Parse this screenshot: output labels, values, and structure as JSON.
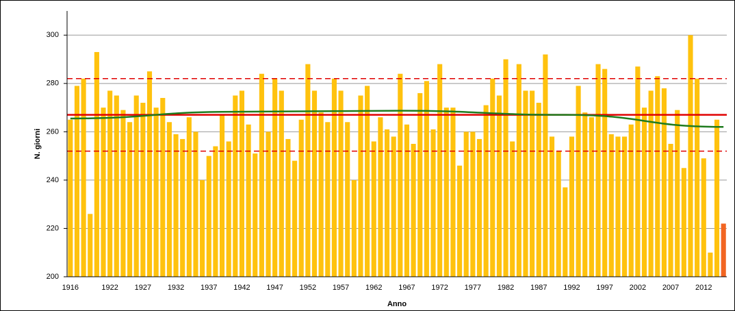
{
  "chart_data": {
    "type": "bar",
    "x_label": "Anno",
    "y_label": "N. giorni",
    "categories": [
      "1916",
      null,
      null,
      null,
      null,
      null,
      "1922",
      null,
      null,
      null,
      null,
      "1927",
      null,
      null,
      null,
      null,
      "1932",
      null,
      null,
      null,
      null,
      "1937",
      null,
      null,
      null,
      null,
      "1942",
      null,
      null,
      null,
      null,
      "1947",
      null,
      null,
      null,
      null,
      "1952",
      null,
      null,
      null,
      null,
      "1957",
      null,
      null,
      null,
      null,
      "1962",
      null,
      null,
      null,
      null,
      "1967",
      null,
      null,
      null,
      null,
      "1972",
      null,
      null,
      null,
      null,
      "1977",
      null,
      null,
      null,
      null,
      "1982",
      null,
      null,
      null,
      null,
      "1987",
      null,
      null,
      null,
      null,
      "1992",
      null,
      null,
      null,
      null,
      "1997",
      null,
      null,
      null,
      null,
      "2002",
      null,
      null,
      null,
      null,
      "2007",
      null,
      null,
      null,
      null,
      "2012",
      null,
      null,
      null
    ],
    "values": [
      265,
      279,
      282,
      226,
      293,
      270,
      277,
      275,
      269,
      264,
      275,
      272,
      285,
      270,
      274,
      264,
      259,
      257,
      266,
      260,
      240,
      250,
      254,
      267,
      256,
      275,
      277,
      263,
      251,
      284,
      260,
      282,
      277,
      257,
      248,
      265,
      288,
      277,
      268,
      264,
      282,
      277,
      264,
      240,
      275,
      279,
      256,
      266,
      261,
      258,
      284,
      263,
      255,
      276,
      281,
      261,
      288,
      270,
      270,
      246,
      260,
      260,
      257,
      271,
      282,
      275,
      290,
      256,
      288,
      277,
      277,
      272,
      292,
      258,
      252,
      237,
      258,
      279,
      268,
      266,
      288,
      286,
      259,
      258,
      258,
      263,
      287,
      270,
      277,
      283,
      278,
      255,
      269,
      245,
      300,
      282,
      249,
      210,
      265,
      222
    ],
    "color": "#ffc20e",
    "highlight": {
      "index": 99,
      "color": "#f26522"
    },
    "ylim": [
      200,
      310
    ],
    "yticks": [
      200,
      220,
      240,
      260,
      280,
      300
    ],
    "grid": true,
    "reference_lines": [
      {
        "value": 267,
        "color": "#e00000",
        "style": "solid"
      },
      {
        "value": 282,
        "color": "#e00000",
        "style": "dashed"
      },
      {
        "value": 252,
        "color": "#e00000",
        "style": "dashed"
      }
    ],
    "trend": {
      "color": "#1e7b1e",
      "x": [
        1916,
        1941,
        1966,
        1991,
        2015
      ],
      "values": [
        265.5,
        268.3,
        268.7,
        267,
        262
      ]
    }
  }
}
